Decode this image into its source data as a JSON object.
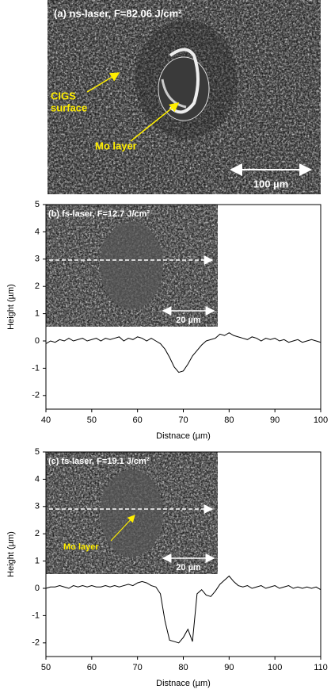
{
  "image_a": {
    "label": "(a) ns-laser, F=82.06 J/cm²",
    "surface_label": [
      "CIGS",
      "surface"
    ],
    "mo_label": "Mo layer",
    "scale_bar": "100 µm"
  },
  "chart_data": [
    {
      "type": "line",
      "inset_label": "(b) fs-laser, F=12.7 J/cm²",
      "scale_bar": "20 µm",
      "x_label": "Distnace (µm)",
      "y_label": "Height (µm)",
      "color": "#000000",
      "xlim": [
        40,
        100
      ],
      "xticks": [
        40,
        50,
        60,
        70,
        80,
        90,
        100
      ],
      "ylim": [
        -2.5,
        5
      ],
      "yticks": [
        -2,
        -1,
        0,
        1,
        2,
        3,
        4,
        5
      ],
      "x": [
        40,
        41,
        42,
        43,
        44,
        45,
        46,
        47,
        48,
        49,
        50,
        51,
        52,
        53,
        54,
        55,
        56,
        57,
        58,
        59,
        60,
        61,
        62,
        63,
        64,
        65,
        66,
        67,
        68,
        69,
        70,
        71,
        72,
        73,
        74,
        75,
        76,
        77,
        78,
        79,
        80,
        81,
        82,
        83,
        84,
        85,
        86,
        87,
        88,
        89,
        90,
        91,
        92,
        93,
        94,
        95,
        96,
        97,
        98,
        99,
        100
      ],
      "values": [
        -0.1,
        0.0,
        -0.05,
        0.05,
        0.0,
        0.1,
        0.0,
        0.05,
        0.1,
        0.0,
        0.05,
        0.1,
        0.0,
        0.1,
        0.05,
        0.1,
        0.15,
        0.0,
        0.1,
        0.05,
        0.15,
        0.1,
        0.0,
        0.1,
        0.0,
        -0.1,
        -0.3,
        -0.6,
        -0.95,
        -1.15,
        -1.1,
        -0.85,
        -0.55,
        -0.35,
        -0.15,
        0.0,
        0.05,
        0.1,
        0.25,
        0.2,
        0.3,
        0.2,
        0.15,
        0.1,
        0.05,
        0.15,
        0.1,
        0.0,
        0.1,
        0.05,
        0.1,
        0.0,
        0.05,
        -0.05,
        0.0,
        0.05,
        -0.05,
        0.0,
        0.05,
        0.0,
        -0.05
      ]
    },
    {
      "type": "line",
      "inset_label": "(c) fs-laser, F=19.1 J/cm²",
      "scale_bar": "20 µm",
      "inset_annotation": "Mo layer",
      "x_label": "Distnace (µm)",
      "y_label": "Height (µm)",
      "color": "#000000",
      "xlim": [
        50,
        110
      ],
      "xticks": [
        50,
        60,
        70,
        80,
        90,
        100,
        110
      ],
      "ylim": [
        -2.5,
        5
      ],
      "yticks": [
        -2,
        -1,
        0,
        1,
        2,
        3,
        4,
        5
      ],
      "x": [
        50,
        51,
        52,
        53,
        54,
        55,
        56,
        57,
        58,
        59,
        60,
        61,
        62,
        63,
        64,
        65,
        66,
        67,
        68,
        69,
        70,
        71,
        72,
        73,
        74,
        75,
        76,
        77,
        78,
        79,
        80,
        81,
        82,
        83,
        84,
        85,
        86,
        87,
        88,
        89,
        90,
        91,
        92,
        93,
        94,
        95,
        96,
        97,
        98,
        99,
        100,
        101,
        102,
        103,
        104,
        105,
        106,
        107,
        108,
        109,
        110
      ],
      "values": [
        0,
        0.05,
        0.05,
        0.1,
        0.05,
        0.0,
        0.1,
        0.05,
        0.1,
        0.05,
        0.1,
        0.05,
        0.05,
        0.1,
        0.05,
        0.1,
        0.05,
        0.1,
        0.15,
        0.1,
        0.2,
        0.25,
        0.2,
        0.1,
        0.05,
        -0.2,
        -1.2,
        -1.9,
        -1.95,
        -2.0,
        -1.8,
        -1.5,
        -1.95,
        -0.2,
        -0.05,
        -0.25,
        -0.3,
        -0.1,
        0.15,
        0.3,
        0.45,
        0.25,
        0.1,
        0.05,
        0.1,
        0.0,
        0.05,
        0.1,
        0.0,
        0.05,
        0.1,
        0.0,
        0.05,
        0.1,
        0.0,
        0.05,
        0.0,
        0.05,
        0.0,
        0.05,
        -0.05
      ]
    }
  ]
}
